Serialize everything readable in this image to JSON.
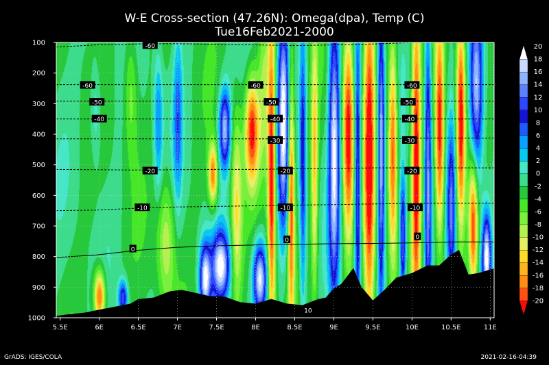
{
  "header": {
    "title": "W-E Cross-section (47.26N): Omega(dpa), Temp (C)",
    "subtitle": "Tue16Feb2021-2000"
  },
  "footer": {
    "left": "GrADS: IGES/COLA",
    "right": "2021-02-16-04:39"
  },
  "chart_data": {
    "type": "heatmap",
    "title": "W-E Cross-section (47.26N): Omega(dpa), Temp (C)",
    "subtitle": "Tue16Feb2021-2000",
    "xlabel": "",
    "ylabel": "",
    "xlim": [
      5.45,
      11.05
    ],
    "ylim": [
      1000,
      100
    ],
    "x_ticks": [
      {
        "value": 5.5,
        "label": "5.5E"
      },
      {
        "value": 6.0,
        "label": "6E"
      },
      {
        "value": 6.5,
        "label": "6.5E"
      },
      {
        "value": 7.0,
        "label": "7E"
      },
      {
        "value": 7.5,
        "label": "7.5E"
      },
      {
        "value": 8.0,
        "label": "8E"
      },
      {
        "value": 8.5,
        "label": "8.5E"
      },
      {
        "value": 9.0,
        "label": "9E"
      },
      {
        "value": 9.5,
        "label": "9.5E"
      },
      {
        "value": 10.0,
        "label": "10E"
      },
      {
        "value": 10.5,
        "label": "10.5E"
      },
      {
        "value": 11.0,
        "label": "11E"
      }
    ],
    "y_ticks": [
      {
        "value": 100,
        "label": "100"
      },
      {
        "value": 200,
        "label": "200"
      },
      {
        "value": 300,
        "label": "300"
      },
      {
        "value": 400,
        "label": "400"
      },
      {
        "value": 500,
        "label": "500"
      },
      {
        "value": 600,
        "label": "600"
      },
      {
        "value": 700,
        "label": "700"
      },
      {
        "value": 800,
        "label": "800"
      },
      {
        "value": 900,
        "label": "900"
      },
      {
        "value": 1000,
        "label": "1000"
      }
    ],
    "grid": true,
    "colorbar": {
      "placement": "right",
      "levels": [
        "20",
        "18",
        "16",
        "14",
        "12",
        "10",
        "8",
        "6",
        "4",
        "2",
        "0",
        "-2",
        "-4",
        "-6",
        "-8",
        "-10",
        "-12",
        "-14",
        "-16",
        "-18",
        "-20"
      ],
      "colors": [
        "#ffffff",
        "#c8d8ff",
        "#8fb4ff",
        "#5a82ff",
        "#2d46ff",
        "#1414d2",
        "#1e5aff",
        "#0aa0ff",
        "#0ac8f0",
        "#46e6c8",
        "#3cdc8c",
        "#28c83c",
        "#46e628",
        "#78f03c",
        "#b4f050",
        "#e6f064",
        "#ffdc28",
        "#ffb41e",
        "#ff8c14",
        "#ff5014",
        "#ff0a0a"
      ]
    },
    "temperature_labels": [
      {
        "label": "-60",
        "x": 6.65,
        "p": 110
      },
      {
        "label": "-60",
        "x": 5.85,
        "p": 240
      },
      {
        "label": "-60",
        "x": 8.0,
        "p": 240
      },
      {
        "label": "-60",
        "x": 10.0,
        "p": 240
      },
      {
        "label": "-50",
        "x": 5.97,
        "p": 295
      },
      {
        "label": "-50",
        "x": 8.2,
        "p": 295
      },
      {
        "label": "-50",
        "x": 9.95,
        "p": 295
      },
      {
        "label": "-40",
        "x": 6.0,
        "p": 350
      },
      {
        "label": "-40",
        "x": 8.25,
        "p": 350
      },
      {
        "label": "-40",
        "x": 9.97,
        "p": 350
      },
      {
        "label": "-30",
        "x": 8.25,
        "p": 420
      },
      {
        "label": "-30",
        "x": 9.97,
        "p": 420
      },
      {
        "label": "-20",
        "x": 6.65,
        "p": 520
      },
      {
        "label": "-20",
        "x": 8.38,
        "p": 520
      },
      {
        "label": "-20",
        "x": 10.0,
        "p": 520
      },
      {
        "label": "-10",
        "x": 6.55,
        "p": 640
      },
      {
        "label": "-10",
        "x": 8.38,
        "p": 640
      },
      {
        "label": "-10",
        "x": 10.04,
        "p": 640
      },
      {
        "label": "0",
        "x": 6.43,
        "p": 775
      },
      {
        "label": "0",
        "x": 8.4,
        "p": 745
      },
      {
        "label": "0",
        "x": 10.07,
        "p": 735
      },
      {
        "label": "10",
        "x": 8.67,
        "p": 975
      }
    ],
    "isotherms": [
      {
        "level": -60,
        "p": [
          115,
          108,
          105,
          104,
          106,
          108,
          110,
          108,
          105,
          100,
          96,
          94
        ]
      },
      {
        "level": -60,
        "p": [
          238,
          238,
          238,
          238,
          238,
          238,
          238,
          238,
          238,
          238,
          238,
          238
        ]
      },
      {
        "level": -50,
        "p": [
          292,
          292,
          292,
          292,
          292,
          292,
          292,
          292,
          292,
          292,
          292,
          292
        ]
      },
      {
        "level": -40,
        "p": [
          350,
          350,
          350,
          350,
          350,
          350,
          350,
          350,
          350,
          350,
          350,
          350
        ]
      },
      {
        "level": -30,
        "p": [
          415,
          415,
          415,
          415,
          415,
          415,
          415,
          415,
          415,
          413,
          413,
          413
        ]
      },
      {
        "level": -20,
        "p": [
          515,
          516,
          517,
          516,
          515,
          515,
          513,
          512,
          510,
          510,
          510,
          510
        ]
      },
      {
        "level": -10,
        "p": [
          650,
          648,
          642,
          638,
          636,
          634,
          632,
          630,
          628,
          626,
          626,
          626
        ]
      },
      {
        "level": 0,
        "p": [
          803,
          795,
          780,
          770,
          765,
          762,
          760,
          758,
          757,
          755,
          752,
          752
        ]
      }
    ],
    "terrain_p": [
      {
        "x": 5.45,
        "p": 995
      },
      {
        "x": 5.6,
        "p": 990
      },
      {
        "x": 5.8,
        "p": 985
      },
      {
        "x": 6.0,
        "p": 975
      },
      {
        "x": 6.2,
        "p": 965
      },
      {
        "x": 6.4,
        "p": 955
      },
      {
        "x": 6.5,
        "p": 940
      },
      {
        "x": 6.7,
        "p": 935
      },
      {
        "x": 6.9,
        "p": 915
      },
      {
        "x": 7.05,
        "p": 910
      },
      {
        "x": 7.2,
        "p": 918
      },
      {
        "x": 7.4,
        "p": 930
      },
      {
        "x": 7.6,
        "p": 932
      },
      {
        "x": 7.8,
        "p": 950
      },
      {
        "x": 8.0,
        "p": 955
      },
      {
        "x": 8.2,
        "p": 940
      },
      {
        "x": 8.4,
        "p": 955
      },
      {
        "x": 8.6,
        "p": 960
      },
      {
        "x": 8.8,
        "p": 940
      },
      {
        "x": 8.9,
        "p": 935
      },
      {
        "x": 9.0,
        "p": 905
      },
      {
        "x": 9.1,
        "p": 890
      },
      {
        "x": 9.25,
        "p": 840
      },
      {
        "x": 9.35,
        "p": 900
      },
      {
        "x": 9.5,
        "p": 945
      },
      {
        "x": 9.65,
        "p": 910
      },
      {
        "x": 9.8,
        "p": 870
      },
      {
        "x": 10.0,
        "p": 855
      },
      {
        "x": 10.2,
        "p": 830
      },
      {
        "x": 10.35,
        "p": 830
      },
      {
        "x": 10.5,
        "p": 795
      },
      {
        "x": 10.6,
        "p": 780
      },
      {
        "x": 10.72,
        "p": 860
      },
      {
        "x": 10.85,
        "p": 855
      },
      {
        "x": 11.05,
        "p": 840
      }
    ],
    "omega_cells": [
      {
        "x": 5.95,
        "p": 330,
        "sx": 0.05,
        "sp": 120,
        "v": 5
      },
      {
        "x": 6.4,
        "p": 260,
        "sx": 0.06,
        "sp": 150,
        "v": -6
      },
      {
        "x": 6.75,
        "p": 360,
        "sx": 0.04,
        "sp": 160,
        "v": 8
      },
      {
        "x": 6.85,
        "p": 750,
        "sx": 0.08,
        "sp": 150,
        "v": -8
      },
      {
        "x": 6.0,
        "p": 930,
        "sx": 0.05,
        "sp": 60,
        "v": -18
      },
      {
        "x": 6.3,
        "p": 935,
        "sx": 0.04,
        "sp": 40,
        "v": 14
      },
      {
        "x": 7.0,
        "p": 350,
        "sx": 0.04,
        "sp": 200,
        "v": 8
      },
      {
        "x": 7.45,
        "p": 530,
        "sx": 0.04,
        "sp": 70,
        "v": -16
      },
      {
        "x": 7.6,
        "p": 380,
        "sx": 0.05,
        "sp": 90,
        "v": 18
      },
      {
        "x": 7.55,
        "p": 830,
        "sx": 0.08,
        "sp": 80,
        "v": 20
      },
      {
        "x": 7.35,
        "p": 870,
        "sx": 0.05,
        "sp": 80,
        "v": 20
      },
      {
        "x": 7.75,
        "p": 650,
        "sx": 0.05,
        "sp": 220,
        "v": -10
      },
      {
        "x": 7.95,
        "p": 390,
        "sx": 0.06,
        "sp": 120,
        "v": -18
      },
      {
        "x": 8.1,
        "p": 250,
        "sx": 0.05,
        "sp": 200,
        "v": -6
      },
      {
        "x": 8.2,
        "p": 550,
        "sx": 0.035,
        "sp": 400,
        "v": -20
      },
      {
        "x": 8.35,
        "p": 350,
        "sx": 0.05,
        "sp": 260,
        "v": 20
      },
      {
        "x": 8.05,
        "p": 870,
        "sx": 0.06,
        "sp": 80,
        "v": 20
      },
      {
        "x": 8.45,
        "p": 600,
        "sx": 0.03,
        "sp": 300,
        "v": -18
      },
      {
        "x": 8.6,
        "p": 500,
        "sx": 0.03,
        "sp": 350,
        "v": 12
      },
      {
        "x": 8.75,
        "p": 500,
        "sx": 0.03,
        "sp": 300,
        "v": -12
      },
      {
        "x": 9.0,
        "p": 450,
        "sx": 0.05,
        "sp": 350,
        "v": 20
      },
      {
        "x": 9.18,
        "p": 400,
        "sx": 0.05,
        "sp": 250,
        "v": -20
      },
      {
        "x": 9.3,
        "p": 550,
        "sx": 0.03,
        "sp": 350,
        "v": 16
      },
      {
        "x": 9.45,
        "p": 500,
        "sx": 0.05,
        "sp": 450,
        "v": -20
      },
      {
        "x": 9.6,
        "p": 450,
        "sx": 0.03,
        "sp": 350,
        "v": 18
      },
      {
        "x": 9.75,
        "p": 450,
        "sx": 0.04,
        "sp": 250,
        "v": -18
      },
      {
        "x": 9.88,
        "p": 750,
        "sx": 0.03,
        "sp": 150,
        "v": 16
      },
      {
        "x": 10.05,
        "p": 500,
        "sx": 0.04,
        "sp": 400,
        "v": -20
      },
      {
        "x": 10.2,
        "p": 550,
        "sx": 0.03,
        "sp": 400,
        "v": 16
      },
      {
        "x": 10.35,
        "p": 400,
        "sx": 0.04,
        "sp": 250,
        "v": -20
      },
      {
        "x": 10.5,
        "p": 650,
        "sx": 0.04,
        "sp": 200,
        "v": 14
      },
      {
        "x": 10.62,
        "p": 350,
        "sx": 0.04,
        "sp": 250,
        "v": -20
      },
      {
        "x": 10.82,
        "p": 250,
        "sx": 0.06,
        "sp": 200,
        "v": 20
      },
      {
        "x": 10.78,
        "p": 700,
        "sx": 0.04,
        "sp": 150,
        "v": -18
      },
      {
        "x": 10.95,
        "p": 800,
        "sx": 0.04,
        "sp": 100,
        "v": 20
      }
    ]
  }
}
